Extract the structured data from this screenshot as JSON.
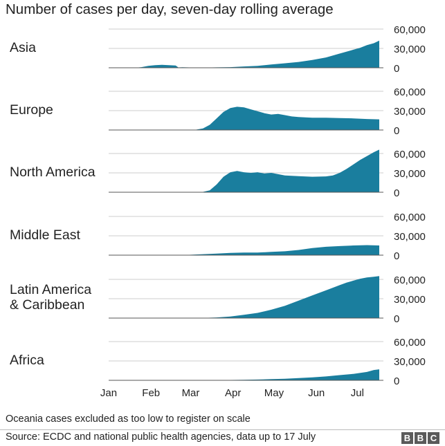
{
  "title": "Number of cases per day, seven-day rolling average",
  "note": "Oceania cases excluded as too low to register on scale",
  "source": "Source: ECDC and national public health agencies, data up to 17 July",
  "logo": [
    "B",
    "B",
    "C"
  ],
  "colors": {
    "area": "#1a7e9e",
    "grid": "#cccccc",
    "text": "#222222",
    "baseline": "#555555"
  },
  "chart_data": {
    "type": "area",
    "x_unit": "2020 dates (day of year)",
    "xlim": [
      "2020-01-01",
      "2020-07-17"
    ],
    "x_ticks": [
      {
        "label": "Jan",
        "day": 1
      },
      {
        "label": "Feb",
        "day": 32
      },
      {
        "label": "Mar",
        "day": 61
      },
      {
        "label": "Apr",
        "day": 92
      },
      {
        "label": "May",
        "day": 122
      },
      {
        "label": "Jun",
        "day": 153
      },
      {
        "label": "Jul",
        "day": 183
      }
    ],
    "ylim": [
      0,
      60000
    ],
    "y_tick_labels": [
      "60,000",
      "30,000",
      "0"
    ],
    "y_ticks": [
      60000,
      30000,
      0
    ],
    "grid": "horizontal",
    "series": [
      {
        "name": "Asia",
        "x": [
          1,
          20,
          25,
          30,
          35,
          40,
          45,
          50,
          52,
          55,
          60,
          70,
          80,
          90,
          100,
          110,
          120,
          130,
          140,
          150,
          160,
          170,
          180,
          185,
          190,
          195,
          199
        ],
        "y": [
          0,
          0,
          1000,
          3000,
          4000,
          4500,
          4000,
          3500,
          500,
          800,
          500,
          300,
          600,
          1000,
          2000,
          3000,
          5000,
          7000,
          9000,
          12000,
          16000,
          22000,
          28000,
          31000,
          35000,
          38000,
          42000
        ]
      },
      {
        "name": "Europe",
        "x": [
          1,
          60,
          65,
          70,
          75,
          80,
          85,
          90,
          95,
          100,
          105,
          110,
          115,
          120,
          125,
          130,
          135,
          140,
          150,
          160,
          170,
          180,
          190,
          199
        ],
        "y": [
          0,
          0,
          500,
          2500,
          8000,
          18000,
          28000,
          34000,
          36000,
          35000,
          32000,
          29000,
          26000,
          24000,
          25000,
          23000,
          21000,
          20000,
          19000,
          19000,
          18500,
          18000,
          17000,
          16500
        ]
      },
      {
        "name": "North America",
        "x": [
          1,
          65,
          70,
          75,
          80,
          85,
          90,
          95,
          100,
          105,
          110,
          115,
          120,
          125,
          130,
          140,
          150,
          160,
          165,
          170,
          175,
          180,
          185,
          190,
          195,
          199
        ],
        "y": [
          0,
          0,
          500,
          3000,
          12000,
          24000,
          31000,
          33000,
          31000,
          30000,
          31000,
          29000,
          30000,
          28000,
          26000,
          25000,
          24000,
          24500,
          26000,
          30000,
          36000,
          43000,
          50000,
          56000,
          62000,
          66000
        ]
      },
      {
        "name": "Middle East",
        "x": [
          1,
          50,
          60,
          70,
          80,
          90,
          100,
          110,
          120,
          130,
          140,
          150,
          160,
          170,
          180,
          190,
          199
        ],
        "y": [
          0,
          0,
          500,
          1500,
          2500,
          3500,
          4000,
          4000,
          5000,
          6000,
          8000,
          11000,
          13000,
          14000,
          15000,
          15500,
          15000
        ]
      },
      {
        "name": "Latin America & Caribbean",
        "x": [
          1,
          65,
          70,
          80,
          90,
          100,
          110,
          120,
          130,
          140,
          150,
          160,
          165,
          170,
          175,
          180,
          185,
          190,
          195,
          199
        ],
        "y": [
          0,
          0,
          200,
          1000,
          2500,
          5000,
          8000,
          13000,
          19000,
          27000,
          35000,
          43000,
          47000,
          51000,
          55000,
          58000,
          61000,
          63000,
          64000,
          65000
        ]
      },
      {
        "name": "Africa",
        "x": [
          1,
          70,
          80,
          90,
          100,
          110,
          120,
          130,
          140,
          150,
          160,
          170,
          180,
          190,
          195,
          199
        ],
        "y": [
          0,
          0,
          200,
          500,
          800,
          1200,
          1800,
          2500,
          3500,
          4500,
          6000,
          8000,
          10000,
          13000,
          16000,
          17000
        ]
      }
    ],
    "panel_labels": [
      [
        "Asia"
      ],
      [
        "Europe"
      ],
      [
        "North America"
      ],
      [
        "Middle East"
      ],
      [
        "Latin America",
        "& Caribbean"
      ],
      [
        "Africa"
      ]
    ]
  }
}
